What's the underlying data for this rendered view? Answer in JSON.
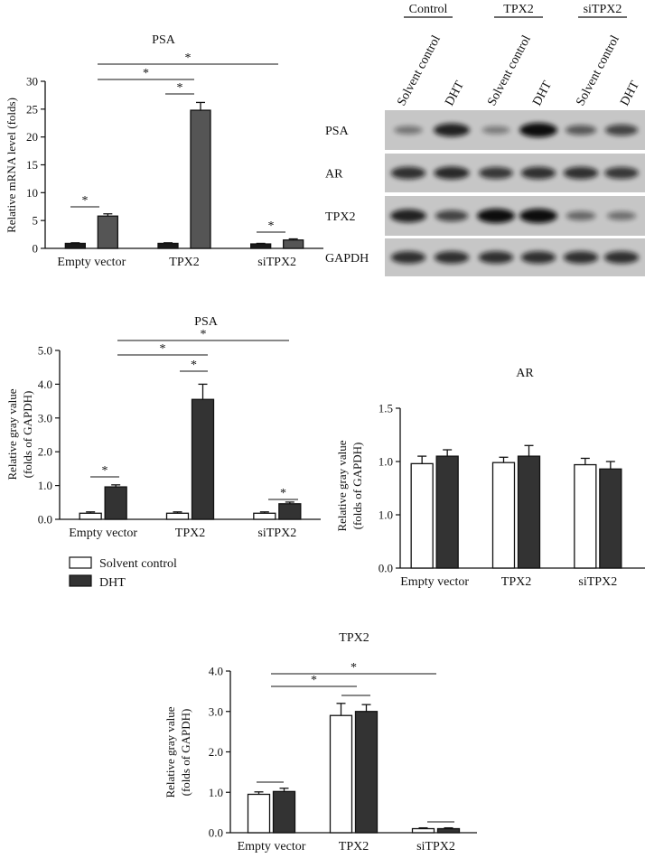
{
  "chart_data": [
    {
      "id": "A",
      "type": "bar",
      "title": "PSA",
      "ylabel": "Relative mRNA level (folds)",
      "xlabel": "",
      "ylim": [
        0,
        30
      ],
      "yticks": [
        "0",
        "5",
        "10",
        "15",
        "20",
        "25",
        "30"
      ],
      "categories": [
        "Empty vector",
        "TPX2",
        "siTPX2"
      ],
      "series": [
        {
          "name": "Solvent control",
          "values": [
            0.9,
            0.9,
            0.8
          ],
          "errors": [
            0.1,
            0.1,
            0.1
          ]
        },
        {
          "name": "DHT",
          "values": [
            5.8,
            24.8,
            1.5
          ],
          "errors": [
            0.4,
            1.4,
            0.2
          ]
        }
      ],
      "significance": [
        "*",
        "*",
        "*",
        "*",
        "*"
      ]
    },
    {
      "id": "B",
      "type": "western-blot",
      "group_labels": [
        "Control",
        "TPX2",
        "siTPX2"
      ],
      "lane_labels": [
        "Solvent control",
        "DHT",
        "Solvent control",
        "DHT",
        "Solvent control",
        "DHT"
      ],
      "row_labels": [
        "PSA",
        "AR",
        "TPX2",
        "GAPDH"
      ],
      "band_intensity": [
        [
          0.25,
          0.85,
          0.2,
          1.0,
          0.45,
          0.6
        ],
        [
          0.75,
          0.8,
          0.7,
          0.75,
          0.75,
          0.7
        ],
        [
          0.85,
          0.6,
          1.0,
          1.0,
          0.35,
          0.3
        ],
        [
          0.75,
          0.75,
          0.75,
          0.75,
          0.75,
          0.75
        ]
      ]
    },
    {
      "id": "C",
      "type": "bar",
      "title": "PSA",
      "ylabel": "Relative gray value (folds of GAPDH)",
      "ylabel_lines": [
        "Relative gray value",
        "(folds of GAPDH)"
      ],
      "xlabel": "",
      "ylim": [
        0,
        5
      ],
      "yticks": [
        "0.0",
        "1.0",
        "2.0",
        "3.0",
        "4.0",
        "5.0"
      ],
      "categories": [
        "Empty vector",
        "TPX2",
        "siTPX2"
      ],
      "series": [
        {
          "name": "Solvent control",
          "values": [
            0.18,
            0.18,
            0.18
          ],
          "errors": [
            0.04,
            0.04,
            0.04
          ]
        },
        {
          "name": "DHT",
          "values": [
            0.96,
            3.55,
            0.46
          ],
          "errors": [
            0.06,
            0.45,
            0.05
          ]
        }
      ],
      "significance": [
        "*",
        "*",
        "*",
        "*",
        "*"
      ]
    },
    {
      "id": "D",
      "type": "bar",
      "title": "AR",
      "ylabel": "Relative gray value (folds of GAPDH)",
      "ylabel_lines": [
        "Relative gray value",
        "(folds of GAPDH)"
      ],
      "xlabel": "",
      "ylim": [
        0,
        1.5
      ],
      "yticks": [
        "0.0",
        "1.0",
        "1.0",
        "1.5"
      ],
      "categories": [
        "Empty vector",
        "TPX2",
        "siTPX2"
      ],
      "series": [
        {
          "name": "Solvent control",
          "values": [
            0.98,
            0.99,
            0.97
          ],
          "errors": [
            0.07,
            0.05,
            0.06
          ]
        },
        {
          "name": "DHT",
          "values": [
            1.05,
            1.05,
            0.93
          ],
          "errors": [
            0.06,
            0.1,
            0.07
          ]
        }
      ],
      "significance": []
    },
    {
      "id": "E",
      "type": "bar",
      "title": "TPX2",
      "ylabel": "Relative gray value (folds of GAPDH)",
      "ylabel_lines": [
        "Relative gray value",
        "(folds of GAPDH)"
      ],
      "xlabel": "",
      "ylim": [
        0,
        4
      ],
      "yticks": [
        "0.0",
        "1.0",
        "2.0",
        "3.0",
        "4.0"
      ],
      "categories": [
        "Empty vector",
        "TPX2",
        "siTPX2"
      ],
      "series": [
        {
          "name": "Solvent control",
          "values": [
            0.95,
            2.9,
            0.1
          ],
          "errors": [
            0.06,
            0.3,
            0.02
          ]
        },
        {
          "name": "DHT",
          "values": [
            1.02,
            3.0,
            0.1
          ],
          "errors": [
            0.08,
            0.17,
            0.02
          ]
        }
      ],
      "significance": [
        "*",
        "*"
      ]
    }
  ],
  "legend": {
    "items": [
      {
        "label": "Solvent control",
        "fill": "#ffffff"
      },
      {
        "label": "DHT",
        "fill": "#333333"
      }
    ]
  },
  "colors": {
    "panelA_bar1": "#1a1a1a",
    "panelA_bar2": "#555555",
    "dht": "#333333",
    "solvent": "#ffffff",
    "axis": "#111111"
  }
}
